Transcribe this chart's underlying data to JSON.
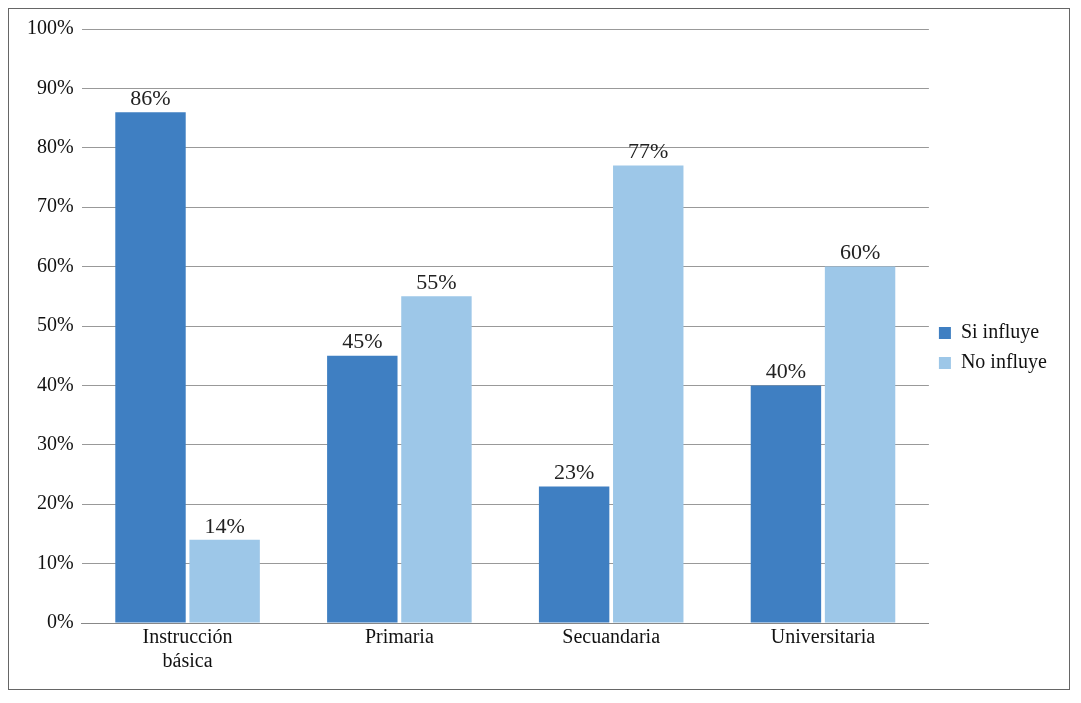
{
  "chart_data": {
    "type": "bar",
    "categories": [
      "Instrucción básica",
      "Primaria",
      "Secuandaria",
      "Universitaria"
    ],
    "series": [
      {
        "name": "Si influye",
        "color": "#3f7fc2",
        "values": [
          86,
          45,
          23,
          40
        ],
        "value_labels": [
          "86%",
          "45%",
          "23%",
          "40%"
        ]
      },
      {
        "name": "No influye",
        "color": "#9dc7e8",
        "values": [
          14,
          55,
          77,
          60
        ],
        "value_labels": [
          "14%",
          "55%",
          "77%",
          "60%"
        ]
      }
    ],
    "ylim": [
      0,
      100
    ],
    "yticks": [
      {
        "value": 0,
        "label": "0%"
      },
      {
        "value": 10,
        "label": "10%"
      },
      {
        "value": 20,
        "label": "20%"
      },
      {
        "value": 30,
        "label": "30%"
      },
      {
        "value": 40,
        "label": "40%"
      },
      {
        "value": 50,
        "label": "50%"
      },
      {
        "value": 60,
        "label": "60%"
      },
      {
        "value": 70,
        "label": "70%"
      },
      {
        "value": 80,
        "label": "80%"
      },
      {
        "value": 90,
        "label": "90%"
      },
      {
        "value": 100,
        "label": "100%"
      }
    ],
    "grid": "y",
    "legend": "right"
  }
}
